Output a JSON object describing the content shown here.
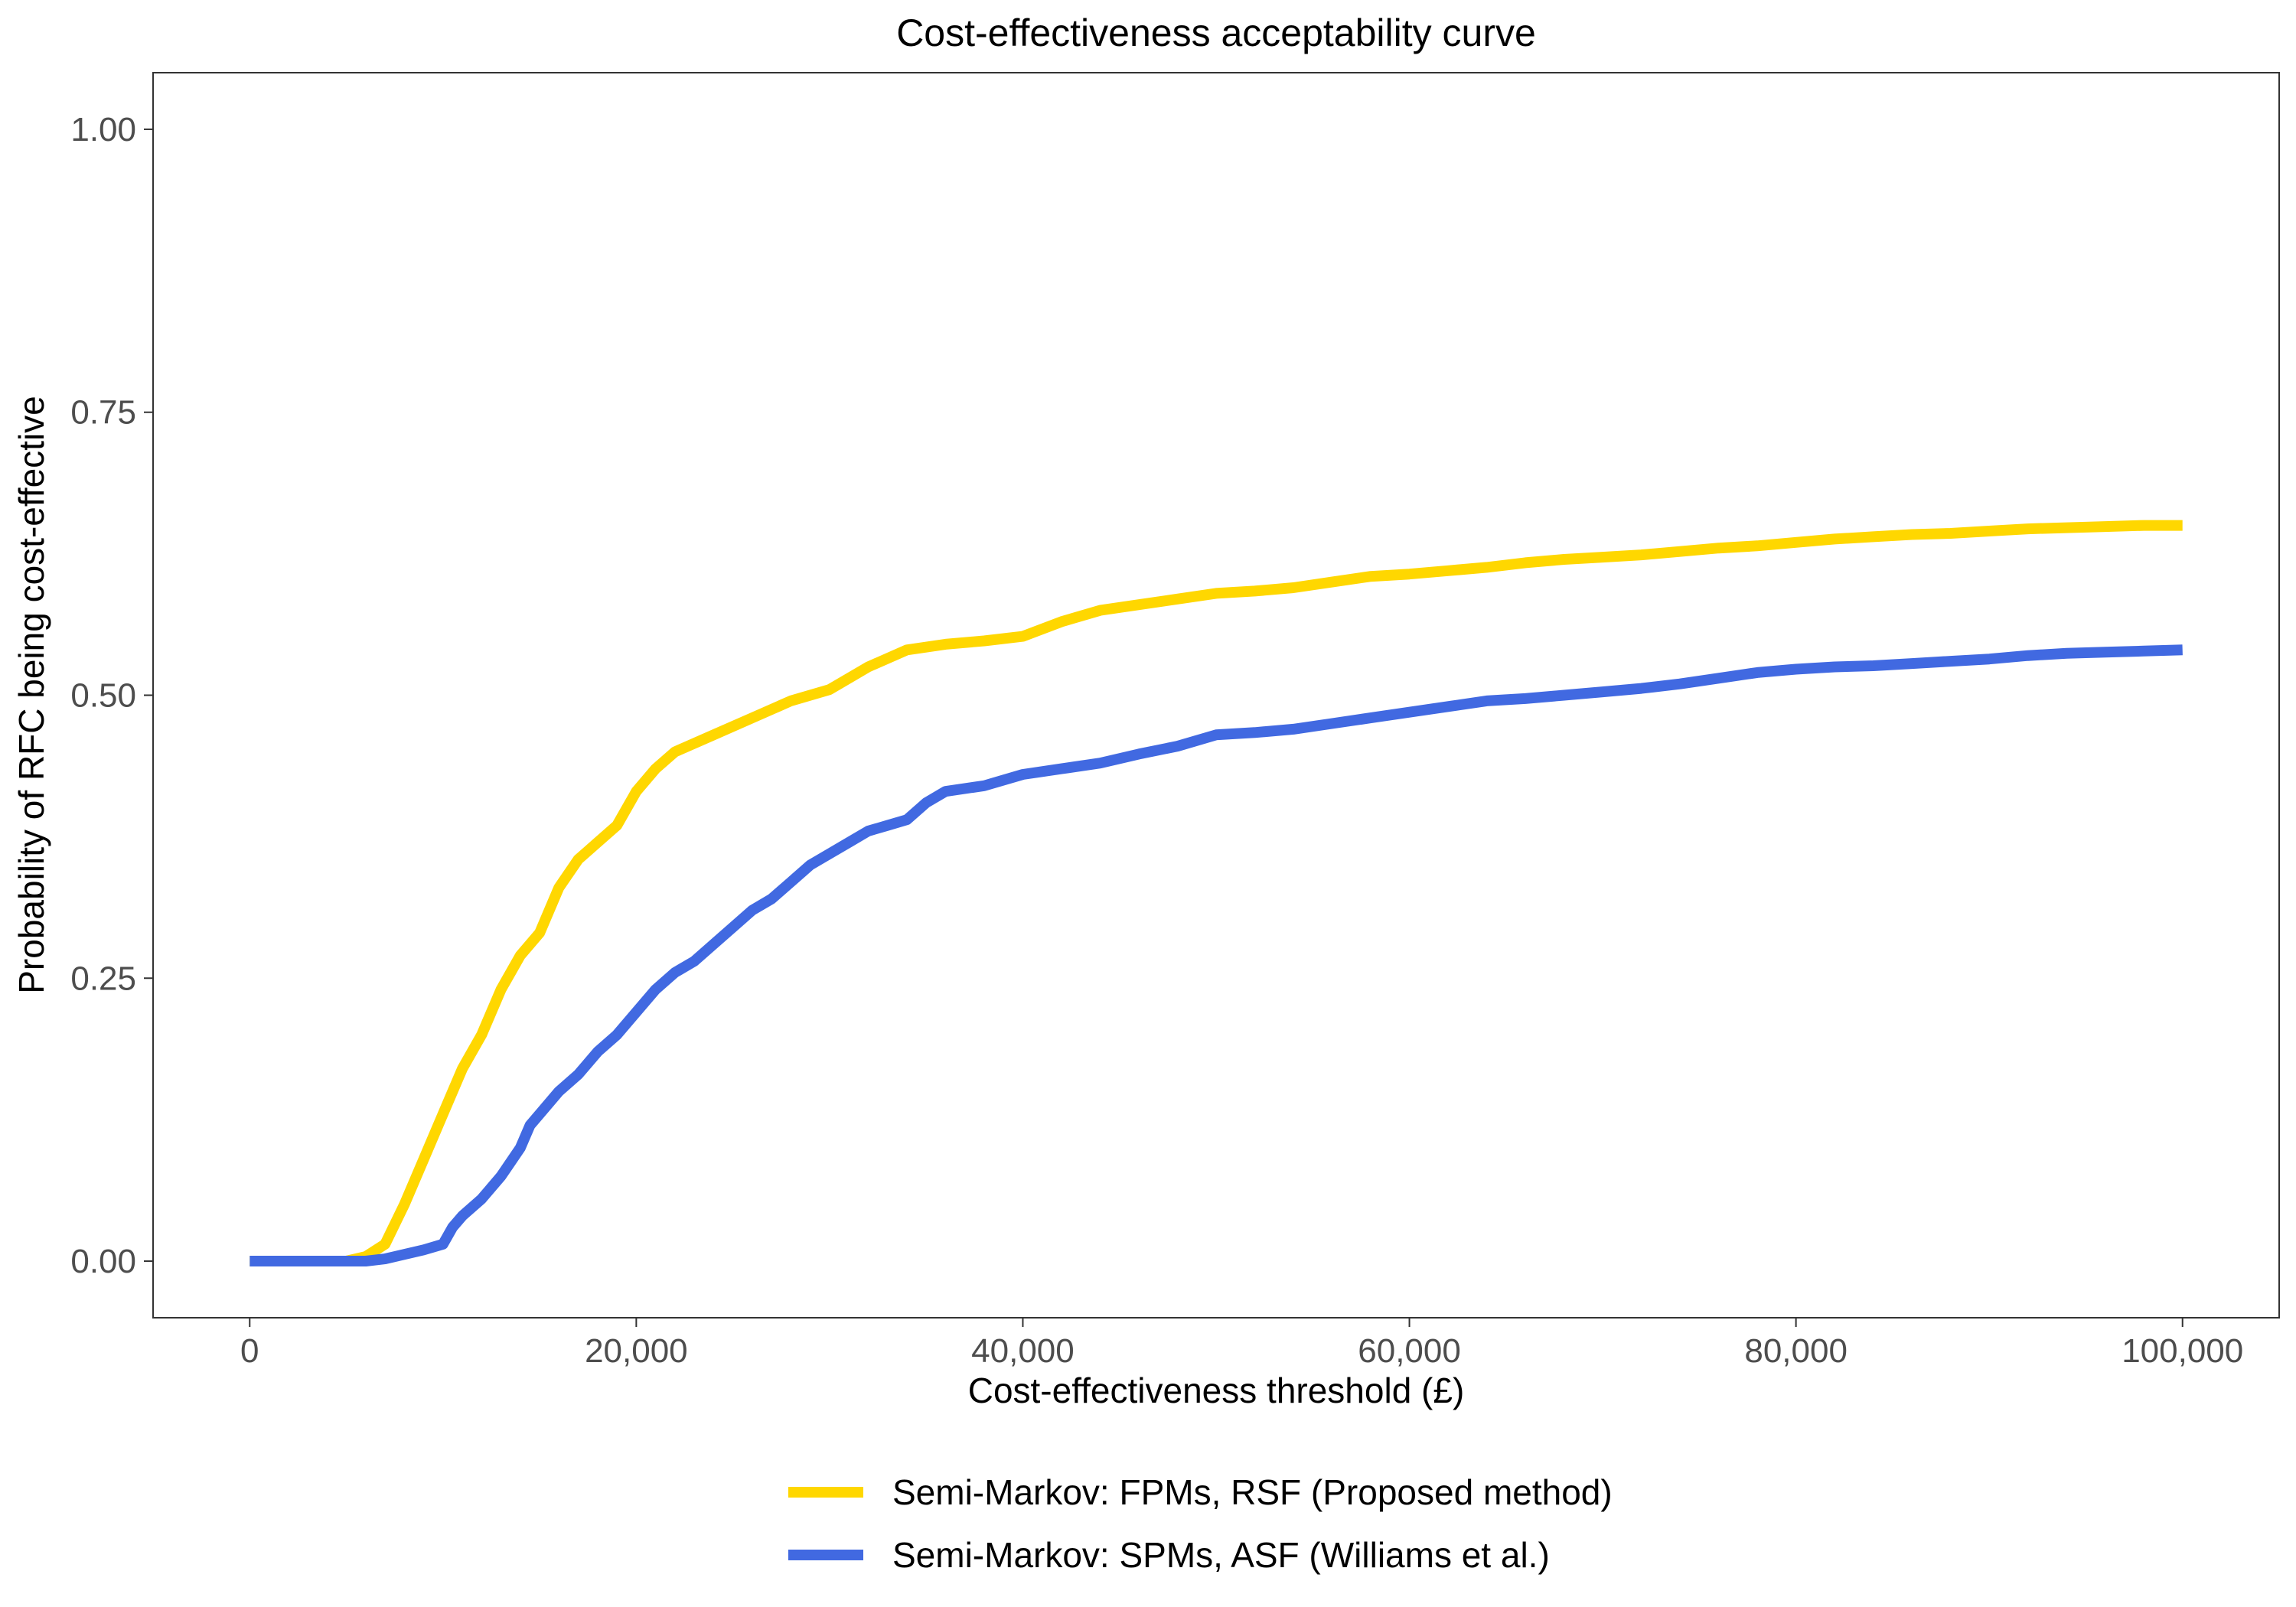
{
  "chart_data": {
    "type": "line",
    "title": "Cost-effectiveness acceptability curve",
    "xlabel": "Cost-effectiveness threshold (£)",
    "ylabel": "Probability of RFC being cost-effective",
    "xlim": [
      -5000,
      105000
    ],
    "ylim": [
      -0.05,
      1.05
    ],
    "x_ticks": [
      0,
      20000,
      40000,
      60000,
      80000,
      100000
    ],
    "x_tick_labels": [
      "0",
      "20,000",
      "40,000",
      "60,000",
      "80,000",
      "100,000"
    ],
    "y_ticks": [
      0,
      0.25,
      0.5,
      0.75,
      1
    ],
    "y_tick_labels": [
      "0.00",
      "0.25",
      "0.50",
      "0.75",
      "1.00"
    ],
    "grid": false,
    "legend_position": "bottom",
    "series": [
      {
        "name": "Semi-Markov: FPMs, RSF (Proposed method)",
        "color": "#FFD700",
        "points": [
          [
            0,
            0
          ],
          [
            5000,
            0
          ],
          [
            6000,
            0.004
          ],
          [
            7000,
            0.015
          ],
          [
            8000,
            0.05
          ],
          [
            9000,
            0.09
          ],
          [
            10000,
            0.13
          ],
          [
            11000,
            0.17
          ],
          [
            12000,
            0.2
          ],
          [
            13000,
            0.24
          ],
          [
            14000,
            0.27
          ],
          [
            15000,
            0.29
          ],
          [
            16000,
            0.33
          ],
          [
            17000,
            0.355
          ],
          [
            18000,
            0.37
          ],
          [
            19000,
            0.385
          ],
          [
            20000,
            0.415
          ],
          [
            21000,
            0.435
          ],
          [
            22000,
            0.45
          ],
          [
            24000,
            0.465
          ],
          [
            26000,
            0.48
          ],
          [
            28000,
            0.495
          ],
          [
            30000,
            0.505
          ],
          [
            32000,
            0.525
          ],
          [
            34000,
            0.54
          ],
          [
            36000,
            0.545
          ],
          [
            38000,
            0.548
          ],
          [
            40000,
            0.552
          ],
          [
            42000,
            0.565
          ],
          [
            44000,
            0.575
          ],
          [
            46000,
            0.58
          ],
          [
            48000,
            0.585
          ],
          [
            50000,
            0.59
          ],
          [
            52000,
            0.592
          ],
          [
            54000,
            0.595
          ],
          [
            56000,
            0.6
          ],
          [
            58000,
            0.605
          ],
          [
            60000,
            0.607
          ],
          [
            62000,
            0.61
          ],
          [
            64000,
            0.613
          ],
          [
            66000,
            0.617
          ],
          [
            68000,
            0.62
          ],
          [
            70000,
            0.622
          ],
          [
            72000,
            0.624
          ],
          [
            74000,
            0.627
          ],
          [
            76000,
            0.63
          ],
          [
            78000,
            0.632
          ],
          [
            80000,
            0.635
          ],
          [
            82000,
            0.638
          ],
          [
            84000,
            0.64
          ],
          [
            86000,
            0.642
          ],
          [
            88000,
            0.643
          ],
          [
            90000,
            0.645
          ],
          [
            92000,
            0.647
          ],
          [
            94000,
            0.648
          ],
          [
            96000,
            0.649
          ],
          [
            98000,
            0.65
          ],
          [
            100000,
            0.65
          ]
        ]
      },
      {
        "name": "Semi-Markov: SPMs, ASF (Williams et al.)",
        "color": "#4169E1",
        "points": [
          [
            0,
            0
          ],
          [
            6000,
            0
          ],
          [
            7000,
            0.002
          ],
          [
            8000,
            0.006
          ],
          [
            9000,
            0.01
          ],
          [
            10000,
            0.015
          ],
          [
            10500,
            0.03
          ],
          [
            11000,
            0.04
          ],
          [
            12000,
            0.055
          ],
          [
            13000,
            0.075
          ],
          [
            14000,
            0.1
          ],
          [
            14500,
            0.12
          ],
          [
            15000,
            0.13
          ],
          [
            16000,
            0.15
          ],
          [
            17000,
            0.165
          ],
          [
            18000,
            0.185
          ],
          [
            19000,
            0.2
          ],
          [
            20000,
            0.22
          ],
          [
            21000,
            0.24
          ],
          [
            22000,
            0.255
          ],
          [
            23000,
            0.265
          ],
          [
            24000,
            0.28
          ],
          [
            25000,
            0.295
          ],
          [
            26000,
            0.31
          ],
          [
            27000,
            0.32
          ],
          [
            28000,
            0.335
          ],
          [
            29000,
            0.35
          ],
          [
            30000,
            0.36
          ],
          [
            31000,
            0.37
          ],
          [
            32000,
            0.38
          ],
          [
            33000,
            0.385
          ],
          [
            34000,
            0.39
          ],
          [
            35000,
            0.405
          ],
          [
            36000,
            0.415
          ],
          [
            38000,
            0.42
          ],
          [
            40000,
            0.43
          ],
          [
            42000,
            0.435
          ],
          [
            44000,
            0.44
          ],
          [
            46000,
            0.448
          ],
          [
            48000,
            0.455
          ],
          [
            50000,
            0.465
          ],
          [
            52000,
            0.467
          ],
          [
            54000,
            0.47
          ],
          [
            56000,
            0.475
          ],
          [
            58000,
            0.48
          ],
          [
            60000,
            0.485
          ],
          [
            62000,
            0.49
          ],
          [
            64000,
            0.495
          ],
          [
            66000,
            0.497
          ],
          [
            68000,
            0.5
          ],
          [
            70000,
            0.503
          ],
          [
            72000,
            0.506
          ],
          [
            74000,
            0.51
          ],
          [
            76000,
            0.515
          ],
          [
            78000,
            0.52
          ],
          [
            80000,
            0.523
          ],
          [
            82000,
            0.525
          ],
          [
            84000,
            0.526
          ],
          [
            86000,
            0.528
          ],
          [
            88000,
            0.53
          ],
          [
            90000,
            0.532
          ],
          [
            92000,
            0.535
          ],
          [
            94000,
            0.537
          ],
          [
            96000,
            0.538
          ],
          [
            98000,
            0.539
          ],
          [
            100000,
            0.54
          ]
        ]
      }
    ]
  }
}
